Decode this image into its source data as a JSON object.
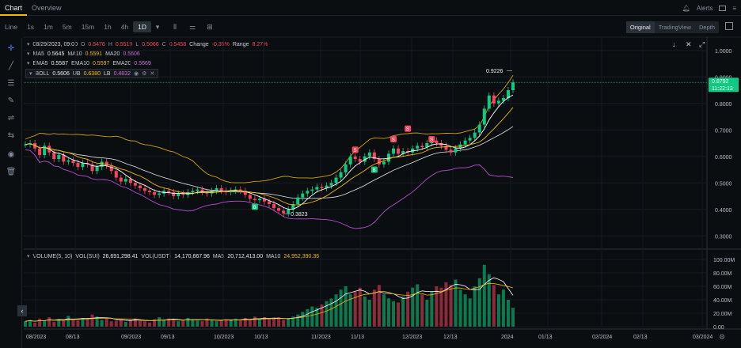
{
  "tabs": [
    {
      "label": "Chart"
    },
    {
      "label": "Overview"
    }
  ],
  "top_right": {
    "alerts": "Alerts"
  },
  "intervals": [
    "Line",
    "1s",
    "1m",
    "5m",
    "15m",
    "1h",
    "4h",
    "1D"
  ],
  "view_tabs": [
    "Original",
    "TradingView",
    "Depth"
  ],
  "legend": {
    "ohlc": {
      "date": "08/29/2023, 09:00",
      "o_label": "O",
      "o": "0.5476",
      "h_label": "H",
      "h": "0.5519",
      "l_label": "L",
      "l": "0.5066",
      "c_label": "C",
      "c": "0.5458",
      "change_label": "Change",
      "change": "-0.35%",
      "range_label": "Range",
      "range": "8.27%"
    },
    "ma": {
      "ma5_label": "MA5",
      "ma5": "0.5645",
      "ma10_label": "MA10",
      "ma10": "0.5591",
      "ma20_label": "MA20",
      "ma20": "0.5606"
    },
    "ema": {
      "ema5_label": "EMA5",
      "ema5": "0.5587",
      "ema10_label": "EMA10",
      "ema10": "0.5597",
      "ema20_label": "EMA20",
      "ema20": "0.5669"
    },
    "boll": {
      "label": "BOLL",
      "v": "0.5606",
      "ub_label": "UB",
      "ub": "0.6380",
      "lb_label": "LB",
      "lb": "0.4832"
    },
    "volume": {
      "label": "VOLUME(5, 10)",
      "sui_label": "VOL(SUI)",
      "sui": "26,691,298.41",
      "usdt_label": "VOL(USDT)",
      "usdt": "14,170,667.96",
      "ma5_label": "MA5",
      "ma5": "20,712,413.00",
      "ma10_label": "MA10",
      "ma10": "24,952,390.36"
    }
  },
  "colors": {
    "up": "#0ecb81",
    "down": "#f6465d",
    "ma5": "#ffffff",
    "ma10": "#f0b90b",
    "ma20": "#c86bd8",
    "ub": "#d4a017",
    "lb": "#b44fd1",
    "mid": "#e6e6e6"
  },
  "price_axis": [
    "1.0000",
    "0.9000",
    "0.8000",
    "0.7000",
    "0.6000",
    "0.5000",
    "0.4000",
    "0.3000"
  ],
  "vol_axis": [
    "100.00M",
    "80.00M",
    "60.00M",
    "40.00M",
    "20.00M",
    "0.00"
  ],
  "time_axis": [
    "08/2023",
    "08/13",
    "09/2023",
    "09/13",
    "10/2023",
    "10/13",
    "11/2023",
    "11/13",
    "12/2023",
    "12/13",
    "2024",
    "01/13",
    "02/2024",
    "02/13",
    "03/2024"
  ],
  "price_tag": {
    "price": "0.8792",
    "countdown": "11:22:13"
  },
  "annotations": {
    "high": "0.9226",
    "low": "0.3823"
  },
  "event_markers": [
    "B",
    "S",
    "S",
    "S",
    "S",
    "B"
  ],
  "chart_data": {
    "type": "candlestick",
    "ylim": [
      0.25,
      1.05
    ],
    "close": [
      0.645,
      0.65,
      0.63,
      0.605,
      0.64,
      0.615,
      0.59,
      0.605,
      0.58,
      0.585,
      0.575,
      0.56,
      0.575,
      0.57,
      0.545,
      0.56,
      0.58,
      0.565,
      0.545,
      0.52,
      0.505,
      0.515,
      0.5,
      0.49,
      0.48,
      0.47,
      0.465,
      0.455,
      0.46,
      0.47,
      0.465,
      0.45,
      0.46,
      0.455,
      0.465,
      0.47,
      0.475,
      0.465,
      0.46,
      0.47,
      0.48,
      0.47,
      0.465,
      0.47,
      0.475,
      0.47,
      0.455,
      0.44,
      0.435,
      0.44,
      0.43,
      0.42,
      0.405,
      0.395,
      0.385,
      0.4,
      0.42,
      0.445,
      0.46,
      0.47,
      0.475,
      0.485,
      0.48,
      0.49,
      0.5,
      0.52,
      0.54,
      0.57,
      0.6,
      0.59,
      0.58,
      0.6,
      0.615,
      0.59,
      0.57,
      0.58,
      0.61,
      0.63,
      0.61,
      0.62,
      0.615,
      0.63,
      0.64,
      0.635,
      0.65,
      0.66,
      0.65,
      0.64,
      0.625,
      0.615,
      0.63,
      0.645,
      0.66,
      0.67,
      0.69,
      0.72,
      0.78,
      0.83,
      0.8,
      0.81,
      0.82,
      0.85,
      0.8792
    ],
    "volume_millions": [
      8,
      10,
      6,
      12,
      9,
      14,
      7,
      11,
      10,
      16,
      12,
      9,
      13,
      11,
      18,
      15,
      10,
      12,
      8,
      9,
      11,
      7,
      10,
      12,
      9,
      8,
      6,
      11,
      14,
      10,
      12,
      9,
      8,
      10,
      13,
      11,
      9,
      8,
      12,
      10,
      8,
      9,
      11,
      10,
      12,
      9,
      13,
      10,
      15,
      12,
      14,
      11,
      12,
      14,
      10,
      12,
      15,
      18,
      22,
      26,
      30,
      28,
      33,
      38,
      42,
      48,
      55,
      60,
      48,
      52,
      58,
      45,
      40,
      55,
      62,
      48,
      42,
      38,
      36,
      45,
      52,
      58,
      63,
      48,
      40,
      52,
      60,
      58,
      66,
      62,
      70,
      55,
      48,
      42,
      60,
      72,
      92,
      78,
      62,
      48,
      55,
      40,
      28
    ]
  }
}
